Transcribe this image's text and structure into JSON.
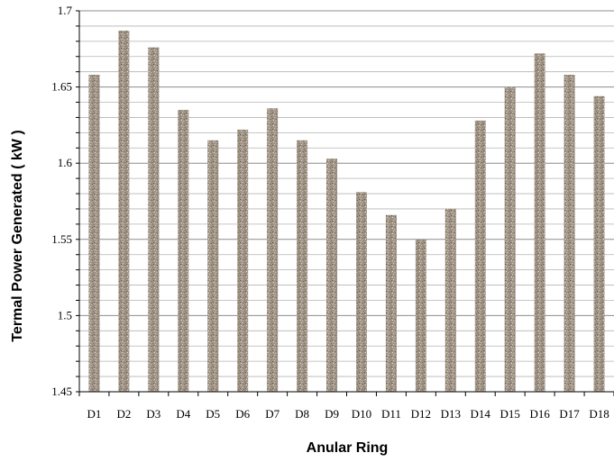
{
  "chart_data": {
    "type": "bar",
    "title": "",
    "xlabel": "Anular Ring",
    "ylabel": "Termal Power Generated ( kW )",
    "ylim": [
      1.45,
      1.7
    ],
    "yticks": [
      "1.45",
      "1.5",
      "1.55",
      "1.6",
      "1.65",
      "1.7"
    ],
    "grid": true,
    "legend": "none",
    "bar_color": "#a09486",
    "categories": [
      "D1",
      "D2",
      "D3",
      "D4",
      "D5",
      "D6",
      "D7",
      "D8",
      "D9",
      "D10",
      "D11",
      "D12",
      "D13",
      "D14",
      "D15",
      "D16",
      "D17",
      "D18"
    ],
    "values": [
      1.658,
      1.687,
      1.676,
      1.635,
      1.615,
      1.622,
      1.636,
      1.615,
      1.603,
      1.581,
      1.566,
      1.55,
      1.57,
      1.628,
      1.65,
      1.672,
      1.658,
      1.644
    ]
  }
}
